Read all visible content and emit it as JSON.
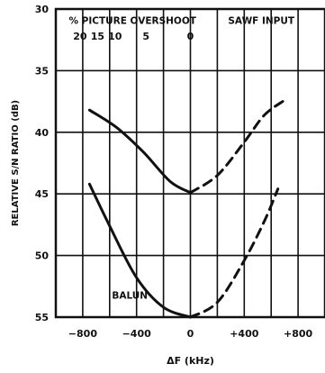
{
  "chart_data": {
    "type": "line",
    "title": "",
    "xlabel": "ΔF (kHz)",
    "ylabel": "RELATIVE S/N RATIO (dB)",
    "xlim": [
      -1000,
      1000
    ],
    "ylim": [
      55,
      30
    ],
    "y_inverted": true,
    "x_tick_values": [
      -800,
      -400,
      0,
      400,
      800
    ],
    "x_tick_labels": [
      "−800",
      "−400",
      "0",
      "+400",
      "+800"
    ],
    "y_tick_values": [
      30,
      35,
      40,
      45,
      50,
      55
    ],
    "y_tick_labels": [
      "30",
      "35",
      "40",
      "45",
      "50",
      "55"
    ],
    "grid": true,
    "series": [
      {
        "name": "SAWF INPUT",
        "segments": [
          {
            "style": "solid",
            "x": [
              -750,
              -550,
              -350,
              -150,
              0
            ],
            "y": [
              38.2,
              39.6,
              41.6,
              44.0,
              44.9
            ]
          },
          {
            "style": "dashed",
            "x": [
              0,
              200,
              400,
              550,
              700
            ],
            "y": [
              44.9,
              43.5,
              40.8,
              38.6,
              37.4
            ]
          }
        ]
      },
      {
        "name": "BALUN",
        "segments": [
          {
            "style": "solid",
            "x": [
              -750,
              -600,
              -400,
              -200,
              0
            ],
            "y": [
              44.2,
              47.6,
              51.8,
              54.2,
              55.0
            ]
          },
          {
            "style": "dashed",
            "x": [
              0,
              200,
              400,
              550,
              650
            ],
            "y": [
              55.0,
              53.8,
              50.4,
              47.2,
              44.6
            ]
          }
        ]
      }
    ],
    "annotations": {
      "overshoot_title": "% PICTURE  OVERSHOOT",
      "overshoot_labels": [
        "20",
        "15",
        "10",
        "5",
        "0"
      ],
      "overshoot_x": [
        -820,
        -690,
        -560,
        -330,
        0
      ],
      "sawf_label": "SAWF  INPUT",
      "balun_label": "BALUN"
    }
  }
}
